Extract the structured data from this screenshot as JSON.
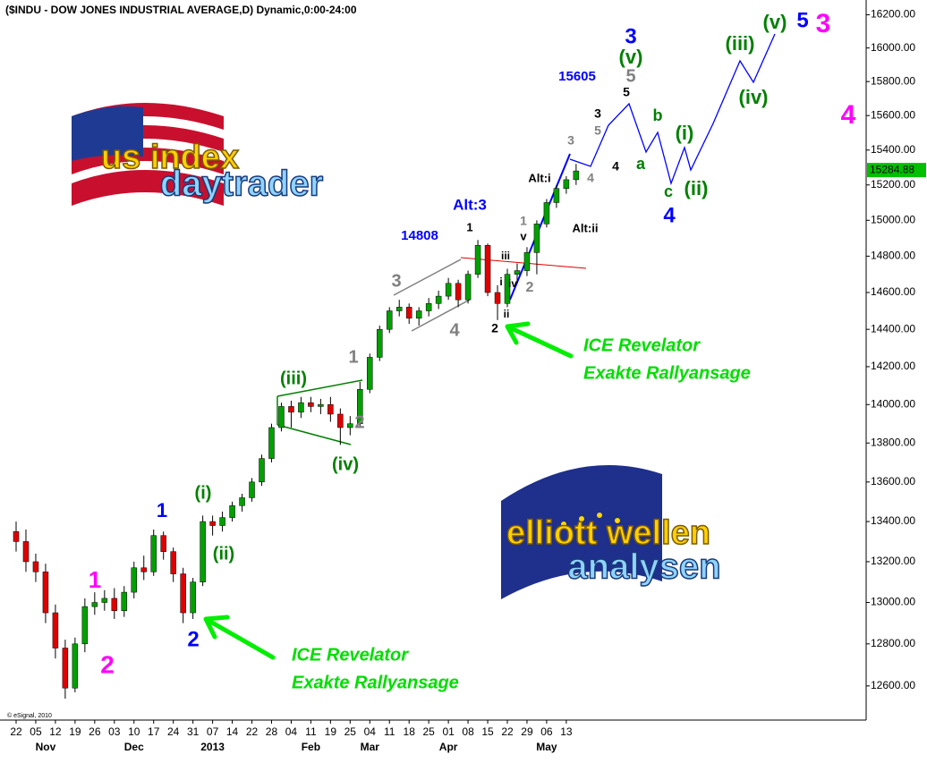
{
  "chart_data": {
    "type": "candlestick",
    "title": "($INDU - DOW JONES INDUSTRIAL AVERAGE,D) Dynamic,0:00-24:00",
    "copyright": "© eSignal, 2010",
    "log_scale": true,
    "up_color": "#00a000",
    "down_color": "#e00000",
    "categories": [
      "22",
      null,
      "05",
      null,
      "12",
      null,
      "19",
      null,
      "26",
      null,
      "03",
      null,
      "10",
      null,
      "17",
      null,
      "24",
      null,
      "31",
      null,
      "07",
      null,
      "14",
      null,
      "22",
      null,
      "28",
      null,
      "04",
      null,
      "11",
      null,
      "19",
      null,
      "25",
      null,
      "04",
      null,
      "11",
      null,
      "18",
      null,
      "25",
      null,
      "01",
      null,
      "08",
      null,
      "15",
      null,
      "22",
      null,
      "29",
      null,
      "06",
      null,
      "13",
      null
    ],
    "month_categories": [
      null,
      null,
      null,
      "Nov",
      null,
      null,
      null,
      null,
      null,
      null,
      null,
      null,
      "Dec",
      null,
      null,
      null,
      null,
      null,
      null,
      null,
      "2013",
      null,
      null,
      null,
      null,
      null,
      null,
      null,
      null,
      null,
      "Feb",
      null,
      null,
      null,
      null,
      null,
      "Mar",
      null,
      null,
      null,
      null,
      null,
      null,
      null,
      "Apr",
      null,
      null,
      null,
      null,
      null,
      null,
      null,
      null,
      null,
      "May",
      null,
      null,
      null
    ],
    "open": [
      13350,
      13300,
      13200,
      13150,
      12950,
      12780,
      12590,
      12800,
      12980,
      13000,
      13020,
      12960,
      13050,
      13170,
      13150,
      13330,
      13250,
      13140,
      12950,
      13100,
      13400,
      13380,
      13420,
      13480,
      13520,
      13600,
      13720,
      13880,
      13990,
      13960,
      14010,
      13990,
      14000,
      13950,
      13880,
      13900,
      14080,
      14250,
      14400,
      14500,
      14520,
      14460,
      14500,
      14540,
      14580,
      14650,
      14560,
      14700,
      14860,
      14600,
      14540,
      14700,
      14720,
      14820,
      14980,
      15100,
      15180,
      15230
    ],
    "high": [
      13400,
      13360,
      13240,
      13190,
      12990,
      12820,
      12830,
      13020,
      13050,
      13060,
      13070,
      13080,
      13200,
      13230,
      13360,
      13350,
      13270,
      13170,
      13120,
      13430,
      13430,
      13450,
      13500,
      13540,
      13620,
      13740,
      13900,
      14010,
      14020,
      14040,
      14040,
      14030,
      14040,
      13980,
      13940,
      14120,
      14270,
      14420,
      14520,
      14560,
      14540,
      14520,
      14570,
      14610,
      14680,
      14670,
      14720,
      14890,
      14870,
      14640,
      14730,
      14760,
      14850,
      15000,
      15120,
      15200,
      15250,
      15320
    ],
    "low": [
      13250,
      13150,
      13100,
      12900,
      12730,
      12540,
      12570,
      12760,
      12940,
      12960,
      12920,
      12930,
      13020,
      13110,
      13130,
      13210,
      13100,
      12900,
      12920,
      13080,
      13330,
      13350,
      13400,
      13450,
      13500,
      13580,
      13700,
      13860,
      13880,
      13930,
      13960,
      13950,
      13910,
      13790,
      13840,
      13880,
      14060,
      14230,
      14380,
      14470,
      14430,
      14420,
      14470,
      14510,
      14560,
      14520,
      14540,
      14680,
      14580,
      14450,
      14520,
      14650,
      14690,
      14700,
      14960,
      15070,
      15150,
      15200
    ],
    "close": [
      13300,
      13200,
      13150,
      12950,
      12780,
      12590,
      12800,
      12980,
      13000,
      13020,
      12960,
      13050,
      13170,
      13150,
      13330,
      13250,
      13140,
      12950,
      13100,
      13400,
      13380,
      13420,
      13480,
      13520,
      13600,
      13720,
      13880,
      13990,
      13960,
      14010,
      13990,
      14000,
      13950,
      13880,
      13900,
      14080,
      14250,
      14400,
      14500,
      14520,
      14460,
      14500,
      14540,
      14580,
      14650,
      14560,
      14700,
      14860,
      14600,
      14540,
      14700,
      14720,
      14820,
      14980,
      15100,
      15180,
      15230,
      15280
    ],
    "last_price": 15284.88,
    "ylim": [
      12440,
      16290
    ],
    "yticks": [
      {
        "value": 12600,
        "label": "12600.00"
      },
      {
        "value": 12800,
        "label": "12800.00"
      },
      {
        "value": 13000,
        "label": "13000.00"
      },
      {
        "value": 13200,
        "label": "13200.00"
      },
      {
        "value": 13400,
        "label": "13400.00"
      },
      {
        "value": 13600,
        "label": "13600.00"
      },
      {
        "value": 13800,
        "label": "13800.00"
      },
      {
        "value": 14000,
        "label": "14000.00"
      },
      {
        "value": 14200,
        "label": "14200.00"
      },
      {
        "value": 14400,
        "label": "14400.00"
      },
      {
        "value": 14600,
        "label": "14600.00"
      },
      {
        "value": 14800,
        "label": "14800.00"
      },
      {
        "value": 15000,
        "label": "15000.00"
      },
      {
        "value": 15200,
        "label": "15200.00"
      },
      {
        "value": 15400,
        "label": "15400.00"
      },
      {
        "value": 15600,
        "label": "15600.00"
      },
      {
        "value": 15800,
        "label": "15800.00"
      },
      {
        "value": 16000,
        "label": "16000.00"
      },
      {
        "value": 16200,
        "label": "16200.00"
      }
    ],
    "annotations": [
      {
        "text": "3",
        "color": "#ff00ff"
      },
      {
        "text": "5",
        "color": "#0000ff"
      },
      {
        "text": "(v)",
        "color": "#008000"
      },
      {
        "text": "3",
        "color": "#0000ff"
      },
      {
        "text": "(v)",
        "color": "#008000"
      },
      {
        "text": "5",
        "color": "#808080"
      },
      {
        "text": "5",
        "color": "#000000"
      },
      {
        "text": "15605",
        "color": "#0000ff"
      },
      {
        "text": "(iii)",
        "color": "#008000"
      },
      {
        "text": "(iv)",
        "color": "#008000"
      },
      {
        "text": "4",
        "color": "#ff00ff"
      },
      {
        "text": "3",
        "color": "#000000"
      },
      {
        "text": "5",
        "color": "#808080"
      },
      {
        "text": "3",
        "color": "#808080"
      },
      {
        "text": "b",
        "color": "#008000"
      },
      {
        "text": "(i)",
        "color": "#008000"
      },
      {
        "text": "4",
        "color": "#000000"
      },
      {
        "text": "4",
        "color": "#808080"
      },
      {
        "text": "a",
        "color": "#008000"
      },
      {
        "text": "c",
        "color": "#008000"
      },
      {
        "text": "(ii)",
        "color": "#008000"
      },
      {
        "text": "4",
        "color": "#0000ff"
      },
      {
        "text": "Alt:i",
        "color": "#000000"
      },
      {
        "text": "Alt:3",
        "color": "#0000ff"
      },
      {
        "text": "14808",
        "color": "#0000ff"
      },
      {
        "text": "1",
        "color": "#000000"
      },
      {
        "text": "1",
        "color": "#808080"
      },
      {
        "text": "v",
        "color": "#000000"
      },
      {
        "text": "Alt:ii",
        "color": "#000000"
      },
      {
        "text": "iii",
        "color": "#000000"
      },
      {
        "text": "iv",
        "color": "#000000"
      },
      {
        "text": "i",
        "color": "#000000"
      },
      {
        "text": "2",
        "color": "#808080"
      },
      {
        "text": "ii",
        "color": "#000000"
      },
      {
        "text": "2",
        "color": "#000000"
      },
      {
        "text": "3",
        "color": "#808080"
      },
      {
        "text": "4",
        "color": "#808080"
      },
      {
        "text": "1",
        "color": "#808080"
      },
      {
        "text": "2",
        "color": "#808080"
      },
      {
        "text": "(iii)",
        "color": "#008000"
      },
      {
        "text": "(iv)",
        "color": "#008000"
      },
      {
        "text": "(i)",
        "color": "#008000"
      },
      {
        "text": "(ii)",
        "color": "#008000"
      },
      {
        "text": "1",
        "color": "#0000ff"
      },
      {
        "text": "2",
        "color": "#0000ff"
      },
      {
        "text": "1",
        "color": "#ff00ff"
      },
      {
        "text": "2",
        "color": "#ff00ff"
      }
    ],
    "callouts": [
      {
        "text": "ICE Revelator",
        "color": "#00dd00"
      },
      {
        "text": "Exakte Rallyansage",
        "color": "#00dd00"
      },
      {
        "text": "ICE Revelator",
        "color": "#00dd00"
      },
      {
        "text": "Exakte Rallyansage",
        "color": "#00dd00"
      }
    ],
    "logos": [
      "us index",
      "daytrader",
      "elliott wellen",
      "analysen"
    ]
  }
}
